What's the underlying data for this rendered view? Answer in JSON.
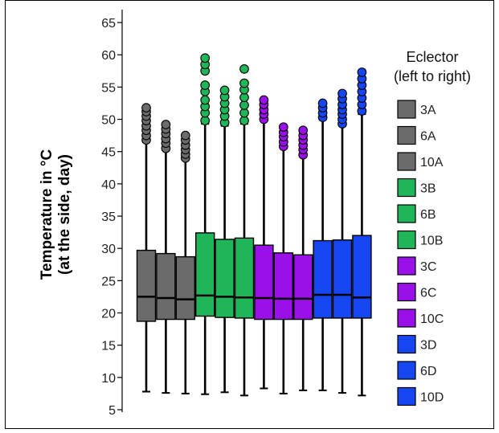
{
  "chart_data": {
    "type": "boxplot",
    "ylabel_lines": [
      "Temperature in °C",
      "(at the side, day)"
    ],
    "ylim": [
      5,
      67
    ],
    "yticks": [
      5,
      10,
      15,
      20,
      25,
      30,
      35,
      40,
      45,
      50,
      55,
      60,
      65
    ],
    "legend": {
      "title_lines": [
        "Eclector",
        "(left to right)"
      ],
      "placement": "right"
    },
    "series": [
      {
        "name": "3A",
        "color": "#6b6b6b",
        "whisker_low": 7.8,
        "q1": 18.7,
        "median": 22.5,
        "q3": 29.7,
        "whisker_high": 46.5,
        "outliers": [
          46.8,
          47.5,
          48.3,
          49.0,
          49.8,
          50.5,
          51.2,
          51.8
        ]
      },
      {
        "name": "6A",
        "color": "#6b6b6b",
        "whisker_low": 7.6,
        "q1": 19.0,
        "median": 22.3,
        "q3": 29.2,
        "whisker_high": 45.3,
        "outliers": [
          45.5,
          46.3,
          47.0,
          47.8,
          48.5,
          49.2
        ]
      },
      {
        "name": "10A",
        "color": "#6b6b6b",
        "whisker_low": 7.5,
        "q1": 19.0,
        "median": 22.1,
        "q3": 28.7,
        "whisker_high": 43.8,
        "outliers": [
          44.0,
          44.6,
          45.3,
          46.0,
          46.8,
          47.5
        ]
      },
      {
        "name": "3B",
        "color": "#1fb558",
        "whisker_low": 7.4,
        "q1": 19.5,
        "median": 22.7,
        "q3": 32.4,
        "whisker_high": 49.3,
        "outliers": [
          49.8,
          51.0,
          52.0,
          53.0,
          54.3,
          55.3,
          57.5,
          58.5,
          59.5
        ]
      },
      {
        "name": "6B",
        "color": "#1fb558",
        "whisker_low": 7.7,
        "q1": 19.3,
        "median": 22.5,
        "q3": 31.4,
        "whisker_high": 49.0,
        "outliers": [
          49.5,
          50.5,
          51.5,
          52.5,
          53.5,
          54.5
        ]
      },
      {
        "name": "10B",
        "color": "#1fb558",
        "whisker_low": 7.2,
        "q1": 19.2,
        "median": 22.4,
        "q3": 31.6,
        "whisker_high": 49.3,
        "outliers": [
          49.8,
          51.0,
          52.2,
          53.4,
          54.6,
          55.6,
          57.8
        ]
      },
      {
        "name": "3C",
        "color": "#9a10e8",
        "whisker_low": 8.3,
        "q1": 19.0,
        "median": 22.3,
        "q3": 30.5,
        "whisker_high": 49.8,
        "outliers": [
          50.0,
          50.8,
          51.5,
          52.3,
          53.0
        ]
      },
      {
        "name": "6C",
        "color": "#9a10e8",
        "whisker_low": 7.5,
        "q1": 19.0,
        "median": 22.2,
        "q3": 29.3,
        "whisker_high": 45.5,
        "outliers": [
          45.8,
          46.5,
          47.3,
          48.0,
          48.8
        ]
      },
      {
        "name": "10C",
        "color": "#9a10e8",
        "whisker_low": 8.0,
        "q1": 19.0,
        "median": 22.2,
        "q3": 29.0,
        "whisker_high": 44.3,
        "outliers": [
          44.5,
          45.3,
          46.0,
          46.8,
          47.5,
          48.3
        ]
      },
      {
        "name": "3D",
        "color": "#1546f0",
        "whisker_low": 8.0,
        "q1": 19.2,
        "median": 22.8,
        "q3": 31.2,
        "whisker_high": 50.0,
        "outliers": [
          50.3,
          51.0,
          51.8,
          52.5
        ]
      },
      {
        "name": "6D",
        "color": "#1546f0",
        "whisker_low": 7.6,
        "q1": 19.2,
        "median": 22.8,
        "q3": 31.3,
        "whisker_high": 49.0,
        "outliers": [
          49.3,
          50.0,
          50.8,
          51.5,
          52.3,
          53.2,
          54.0
        ]
      },
      {
        "name": "10D",
        "color": "#1546f0",
        "whisker_low": 7.2,
        "q1": 19.2,
        "median": 22.4,
        "q3": 32.0,
        "whisker_high": 50.8,
        "outliers": [
          51.3,
          52.3,
          53.3,
          54.3,
          55.3,
          56.3,
          57.3
        ]
      }
    ]
  }
}
